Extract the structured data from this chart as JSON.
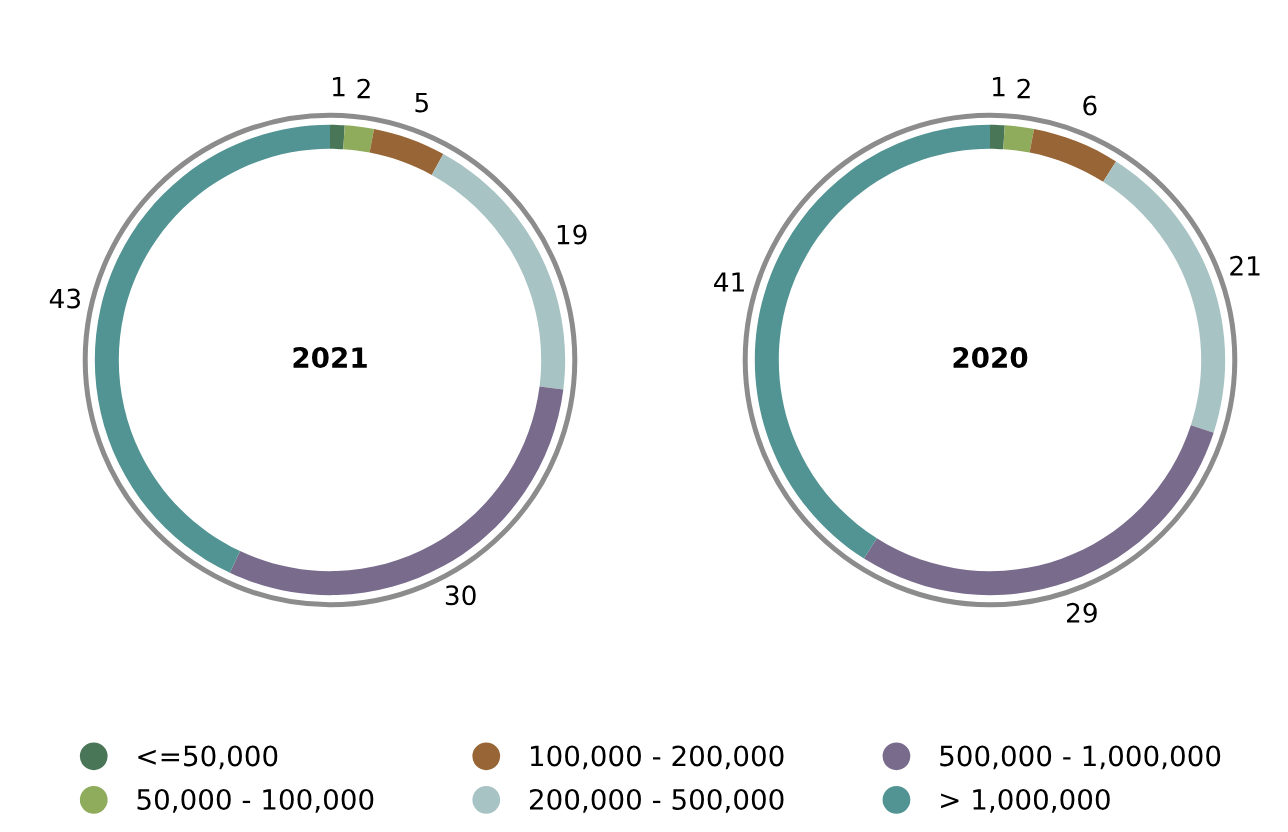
{
  "chart_data": [
    {
      "type": "donut",
      "title": "2021",
      "categories": [
        "<=50,000",
        "50,000 - 100,000",
        "100,000 - 200,000",
        "200,000 - 500,000",
        "500,000 - 1,000,000",
        "> 1,000,000"
      ],
      "values": [
        1,
        2,
        5,
        19,
        30,
        43
      ],
      "colors": [
        "#4a7658",
        "#8fac5c",
        "#976536",
        "#a8c3c4",
        "#786b8c",
        "#529493"
      ],
      "data_labels": true,
      "legend": "bottom"
    },
    {
      "type": "donut",
      "title": "2020",
      "categories": [
        null,
        null,
        null,
        null,
        null,
        null
      ],
      "values": [
        1,
        2,
        6,
        21,
        29,
        41
      ],
      "colors": [
        "#4a7658",
        "#8fac5c",
        "#976536",
        "#a8c3c4",
        "#786b8c",
        "#529493"
      ],
      "data_labels": true
    }
  ]
}
